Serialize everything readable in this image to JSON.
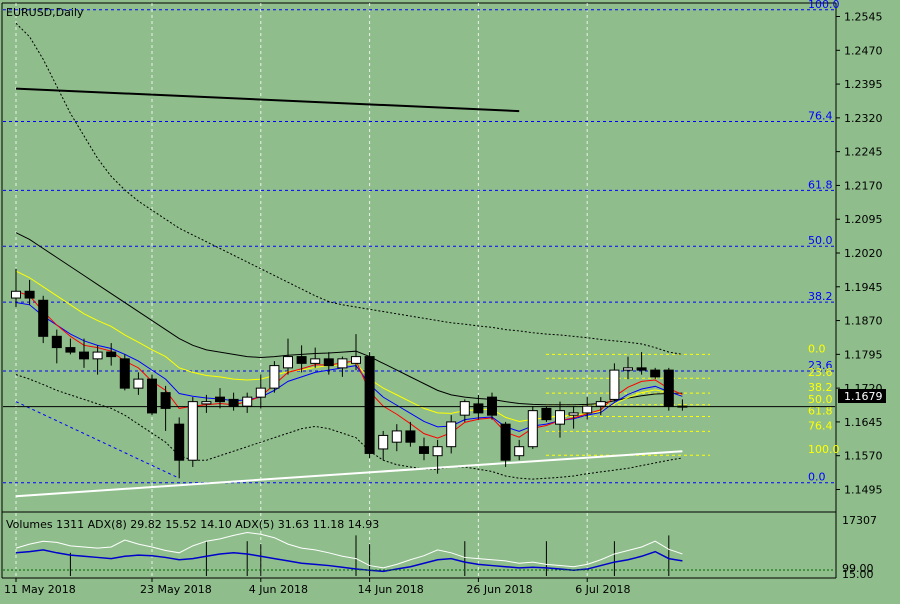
{
  "window": {
    "symbol_label": "EURUSD,Daily",
    "last_price_label": "1.1679"
  },
  "colors": {
    "background": "#8fbe8c",
    "candle_up": "#ffffff",
    "candle_down": "#000000",
    "fib_blue": "#0000ff",
    "fib_yellow": "#ffff00",
    "ma_red": "#ff0000",
    "ma_blue": "#0000ff",
    "ma_yellow": "#ffff00",
    "envelope": "#000000",
    "trendline_white": "#ffffff"
  },
  "indicator_panel": {
    "label": "Volumes 1311 ADX(8) 29.82 15.52 14.10 ADX(5) 31.63 11.18 14.93",
    "axis_top": "17307",
    "axis_bottom_1": "99.00",
    "axis_bottom_2": "15.00"
  },
  "chart_data": {
    "type": "candlestick",
    "y_axis": {
      "min": 1.1445,
      "max": 1.2575,
      "ticks": [
        "1.2545",
        "1.2470",
        "1.2395",
        "1.2320",
        "1.2245",
        "1.2170",
        "1.2095",
        "1.2020",
        "1.1945",
        "1.1870",
        "1.1795",
        "1.1720",
        "1.1645",
        "1.1570",
        "1.1495"
      ]
    },
    "x_axis_labels": [
      "11 May 2018",
      "23 May 2018",
      "4 Jun 2018",
      "14 Jun 2018",
      "26 Jun 2018",
      "6 Jul 2018"
    ],
    "x_label_bars": [
      0,
      10,
      18,
      26,
      34,
      42
    ],
    "candles": [
      {
        "o": 1.192,
        "h": 1.1985,
        "l": 1.19,
        "c": 1.1935
      },
      {
        "o": 1.1935,
        "h": 1.196,
        "l": 1.1905,
        "c": 1.192
      },
      {
        "o": 1.1915,
        "h": 1.1925,
        "l": 1.182,
        "c": 1.1835
      },
      {
        "o": 1.1835,
        "h": 1.185,
        "l": 1.1775,
        "c": 1.181
      },
      {
        "o": 1.181,
        "h": 1.183,
        "l": 1.1795,
        "c": 1.18
      },
      {
        "o": 1.18,
        "h": 1.183,
        "l": 1.1765,
        "c": 1.1785
      },
      {
        "o": 1.1785,
        "h": 1.1815,
        "l": 1.175,
        "c": 1.18
      },
      {
        "o": 1.18,
        "h": 1.182,
        "l": 1.177,
        "c": 1.179
      },
      {
        "o": 1.1785,
        "h": 1.1795,
        "l": 1.1715,
        "c": 1.172
      },
      {
        "o": 1.172,
        "h": 1.1755,
        "l": 1.1705,
        "c": 1.174
      },
      {
        "o": 1.174,
        "h": 1.175,
        "l": 1.166,
        "c": 1.1665
      },
      {
        "o": 1.171,
        "h": 1.1725,
        "l": 1.1625,
        "c": 1.1675
      },
      {
        "o": 1.164,
        "h": 1.1655,
        "l": 1.152,
        "c": 1.156
      },
      {
        "o": 1.156,
        "h": 1.17,
        "l": 1.1545,
        "c": 1.169
      },
      {
        "o": 1.1685,
        "h": 1.1705,
        "l": 1.1665,
        "c": 1.169
      },
      {
        "o": 1.17,
        "h": 1.172,
        "l": 1.1675,
        "c": 1.169
      },
      {
        "o": 1.1695,
        "h": 1.171,
        "l": 1.167,
        "c": 1.168
      },
      {
        "o": 1.168,
        "h": 1.171,
        "l": 1.1665,
        "c": 1.17
      },
      {
        "o": 1.17,
        "h": 1.175,
        "l": 1.1675,
        "c": 1.172
      },
      {
        "o": 1.172,
        "h": 1.178,
        "l": 1.171,
        "c": 1.177
      },
      {
        "o": 1.1765,
        "h": 1.183,
        "l": 1.175,
        "c": 1.179
      },
      {
        "o": 1.179,
        "h": 1.1815,
        "l": 1.1755,
        "c": 1.1775
      },
      {
        "o": 1.1775,
        "h": 1.181,
        "l": 1.1765,
        "c": 1.1785
      },
      {
        "o": 1.1785,
        "h": 1.18,
        "l": 1.175,
        "c": 1.177
      },
      {
        "o": 1.1765,
        "h": 1.179,
        "l": 1.1745,
        "c": 1.1785
      },
      {
        "o": 1.1775,
        "h": 1.184,
        "l": 1.176,
        "c": 1.179
      },
      {
        "o": 1.179,
        "h": 1.18,
        "l": 1.1565,
        "c": 1.1575
      },
      {
        "o": 1.1585,
        "h": 1.1625,
        "l": 1.156,
        "c": 1.1615
      },
      {
        "o": 1.16,
        "h": 1.164,
        "l": 1.158,
        "c": 1.1625
      },
      {
        "o": 1.1625,
        "h": 1.1645,
        "l": 1.159,
        "c": 1.16
      },
      {
        "o": 1.159,
        "h": 1.161,
        "l": 1.156,
        "c": 1.1575
      },
      {
        "o": 1.157,
        "h": 1.1605,
        "l": 1.153,
        "c": 1.159
      },
      {
        "o": 1.159,
        "h": 1.166,
        "l": 1.1575,
        "c": 1.1645
      },
      {
        "o": 1.166,
        "h": 1.1695,
        "l": 1.1645,
        "c": 1.169
      },
      {
        "o": 1.1685,
        "h": 1.1705,
        "l": 1.165,
        "c": 1.1665
      },
      {
        "o": 1.17,
        "h": 1.171,
        "l": 1.165,
        "c": 1.166
      },
      {
        "o": 1.164,
        "h": 1.1645,
        "l": 1.1545,
        "c": 1.156
      },
      {
        "o": 1.157,
        "h": 1.1605,
        "l": 1.156,
        "c": 1.159
      },
      {
        "o": 1.159,
        "h": 1.168,
        "l": 1.1585,
        "c": 1.167
      },
      {
        "o": 1.1675,
        "h": 1.168,
        "l": 1.1645,
        "c": 1.165
      },
      {
        "o": 1.164,
        "h": 1.169,
        "l": 1.161,
        "c": 1.167
      },
      {
        "o": 1.166,
        "h": 1.168,
        "l": 1.163,
        "c": 1.1665
      },
      {
        "o": 1.1665,
        "h": 1.17,
        "l": 1.165,
        "c": 1.168
      },
      {
        "o": 1.168,
        "h": 1.17,
        "l": 1.166,
        "c": 1.169
      },
      {
        "o": 1.1695,
        "h": 1.1775,
        "l": 1.169,
        "c": 1.176
      },
      {
        "o": 1.176,
        "h": 1.179,
        "l": 1.174,
        "c": 1.1765
      },
      {
        "o": 1.1765,
        "h": 1.18,
        "l": 1.175,
        "c": 1.176
      },
      {
        "o": 1.176,
        "h": 1.1765,
        "l": 1.174,
        "c": 1.1745
      },
      {
        "o": 1.176,
        "h": 1.1765,
        "l": 1.167,
        "c": 1.168
      },
      {
        "o": 1.168,
        "h": 1.1695,
        "l": 1.167,
        "c": 1.1679
      }
    ],
    "fib_blue": {
      "from": 1.151,
      "to": 1.256,
      "levels": [
        {
          "label": "100.0",
          "value": 1.256
        },
        {
          "label": "76.4",
          "value": 1.2312
        },
        {
          "label": "61.8",
          "value": 1.2159
        },
        {
          "label": "50.0",
          "value": 1.2035
        },
        {
          "label": "38.2",
          "value": 1.1911
        },
        {
          "label": "23.6",
          "value": 1.1758
        },
        {
          "label": "0.0",
          "value": 1.151
        }
      ],
      "label_23_6_text": "23.6",
      "label_0_text": "0.0"
    },
    "fib_yellow": {
      "levels": [
        {
          "label": "0.0",
          "value": 1.1795
        },
        {
          "label": "23.6",
          "value": 1.1742
        },
        {
          "label": "38.2",
          "value": 1.1709
        },
        {
          "label": "50.0",
          "value": 1.1683
        },
        {
          "label": "61.8",
          "value": 1.1657
        },
        {
          "label": "76.4",
          "value": 1.1624
        },
        {
          "label": "100.0",
          "value": 1.1571
        }
      ]
    },
    "ma_red": [
      1.1935,
      1.1925,
      1.189,
      1.186,
      1.1835,
      1.1815,
      1.181,
      1.1802,
      1.178,
      1.1765,
      1.1735,
      1.1715,
      1.1675,
      1.168,
      1.1683,
      1.1686,
      1.1683,
      1.169,
      1.1702,
      1.1728,
      1.1755,
      1.1763,
      1.1772,
      1.1771,
      1.1776,
      1.1781,
      1.1712,
      1.168,
      1.1662,
      1.1641,
      1.1619,
      1.1609,
      1.1621,
      1.1644,
      1.1651,
      1.1654,
      1.1622,
      1.1611,
      1.1631,
      1.1637,
      1.1648,
      1.1654,
      1.1663,
      1.1672,
      1.1701,
      1.1722,
      1.1735,
      1.1738,
      1.1719,
      1.1706
    ],
    "ma_blue": [
      1.191,
      1.1905,
      1.188,
      1.186,
      1.184,
      1.1825,
      1.1815,
      1.1808,
      1.1795,
      1.178,
      1.176,
      1.174,
      1.1708,
      1.1702,
      1.1698,
      1.1696,
      1.1692,
      1.1694,
      1.17,
      1.1715,
      1.1735,
      1.1745,
      1.1755,
      1.176,
      1.1765,
      1.177,
      1.1728,
      1.17,
      1.1682,
      1.1664,
      1.1646,
      1.1634,
      1.1636,
      1.165,
      1.1654,
      1.1656,
      1.1634,
      1.1624,
      1.1636,
      1.164,
      1.1648,
      1.1652,
      1.166,
      1.1666,
      1.1688,
      1.1706,
      1.1718,
      1.1724,
      1.1712,
      1.1702
    ],
    "ma_yellow": [
      1.198,
      1.1965,
      1.1945,
      1.1925,
      1.1905,
      1.1885,
      1.187,
      1.1857,
      1.1838,
      1.1822,
      1.1805,
      1.179,
      1.1765,
      1.1755,
      1.1748,
      1.1745,
      1.174,
      1.1738,
      1.174,
      1.1748,
      1.1757,
      1.176,
      1.1766,
      1.177,
      1.1772,
      1.1775,
      1.174,
      1.172,
      1.1705,
      1.169,
      1.1675,
      1.1665,
      1.1664,
      1.167,
      1.1672,
      1.1673,
      1.1655,
      1.1646,
      1.1651,
      1.1654,
      1.1658,
      1.166,
      1.1664,
      1.1668,
      1.1685,
      1.1699,
      1.171,
      1.1716,
      1.171,
      1.1704
    ],
    "ma_black": [
      1.2065,
      1.205,
      1.203,
      1.201,
      1.199,
      1.197,
      1.195,
      1.193,
      1.191,
      1.189,
      1.187,
      1.185,
      1.183,
      1.1815,
      1.1805,
      1.18,
      1.1795,
      1.179,
      1.1788,
      1.179,
      1.1793,
      1.1795,
      1.1797,
      1.1798,
      1.18,
      1.1802,
      1.179,
      1.1775,
      1.176,
      1.1745,
      1.173,
      1.1715,
      1.1705,
      1.17,
      1.1697,
      1.1695,
      1.169,
      1.1686,
      1.1684,
      1.1683,
      1.1683,
      1.1683,
      1.1684,
      1.1686,
      1.1692,
      1.1698,
      1.1703,
      1.1707,
      1.1708,
      1.1709
    ],
    "envelope_upper": [
      1.253,
      1.25,
      1.245,
      1.239,
      1.233,
      1.228,
      1.223,
      1.219,
      1.216,
      1.2135,
      1.2115,
      1.2095,
      1.2075,
      1.206,
      1.2045,
      1.203,
      1.2015,
      1.2,
      1.1985,
      1.197,
      1.1955,
      1.194,
      1.1925,
      1.1912,
      1.1905,
      1.19,
      1.1895,
      1.189,
      1.1885,
      1.188,
      1.1875,
      1.187,
      1.1865,
      1.1862,
      1.1858,
      1.1855,
      1.185,
      1.1847,
      1.1843,
      1.184,
      1.1838,
      1.1835,
      1.1832,
      1.1828,
      1.1825,
      1.1822,
      1.1818,
      1.181,
      1.18,
      1.1795
    ],
    "envelope_lower": [
      1.175,
      1.174,
      1.1728,
      1.1715,
      1.1705,
      1.1695,
      1.1685,
      1.1675,
      1.166,
      1.164,
      1.162,
      1.16,
      1.157,
      1.156,
      1.156,
      1.157,
      1.158,
      1.159,
      1.16,
      1.161,
      1.162,
      1.163,
      1.1635,
      1.163,
      1.162,
      1.161,
      1.158,
      1.156,
      1.155,
      1.1545,
      1.154,
      1.154,
      1.1545,
      1.1545,
      1.154,
      1.1535,
      1.1525,
      1.152,
      1.1518,
      1.152,
      1.1522,
      1.1525,
      1.153,
      1.1534,
      1.1538,
      1.1542,
      1.1548,
      1.1554,
      1.156,
      1.1565
    ],
    "long_trendline_black": {
      "from_bar": 0,
      "from_value": 1.2385,
      "to_bar": 37,
      "to_value": 1.2335
    },
    "support_trendline_white": {
      "from_bar": 0,
      "from_value": 1.148,
      "to_bar": 49,
      "to_value": 1.158
    },
    "dashed_channel_blue": {
      "from_bar": 0,
      "from_value": 1.169,
      "to_bar": 12,
      "to_value": 1.152
    },
    "horizontal_price_line": 1.1679,
    "indicator_adx_white": [
      48,
      55,
      60,
      58,
      52,
      50,
      48,
      50,
      62,
      55,
      50,
      44,
      40,
      52,
      60,
      64,
      70,
      75,
      72,
      66,
      55,
      48,
      45,
      40,
      34,
      30,
      18,
      14,
      20,
      28,
      35,
      45,
      40,
      32,
      30,
      28,
      26,
      22,
      24,
      20,
      18,
      16,
      20,
      28,
      38,
      44,
      50,
      60,
      46,
      38
    ],
    "indicator_adx_blue": [
      40,
      42,
      45,
      40,
      36,
      34,
      32,
      30,
      34,
      36,
      35,
      32,
      28,
      30,
      34,
      38,
      40,
      38,
      34,
      30,
      26,
      22,
      20,
      18,
      15,
      12,
      10,
      8,
      12,
      16,
      22,
      28,
      30,
      24,
      20,
      18,
      16,
      14,
      15,
      14,
      12,
      10,
      12,
      18,
      24,
      28,
      34,
      42,
      30,
      26
    ],
    "volume_spikes": [
      0,
      0,
      0,
      0,
      40,
      0,
      0,
      0,
      0,
      0,
      0,
      0,
      0,
      0,
      60,
      0,
      0,
      60,
      55,
      0,
      0,
      0,
      0,
      0,
      0,
      70,
      55,
      0,
      0,
      0,
      0,
      0,
      0,
      60,
      0,
      0,
      0,
      0,
      0,
      60,
      0,
      0,
      0,
      0,
      60,
      0,
      0,
      0,
      70,
      0
    ]
  }
}
